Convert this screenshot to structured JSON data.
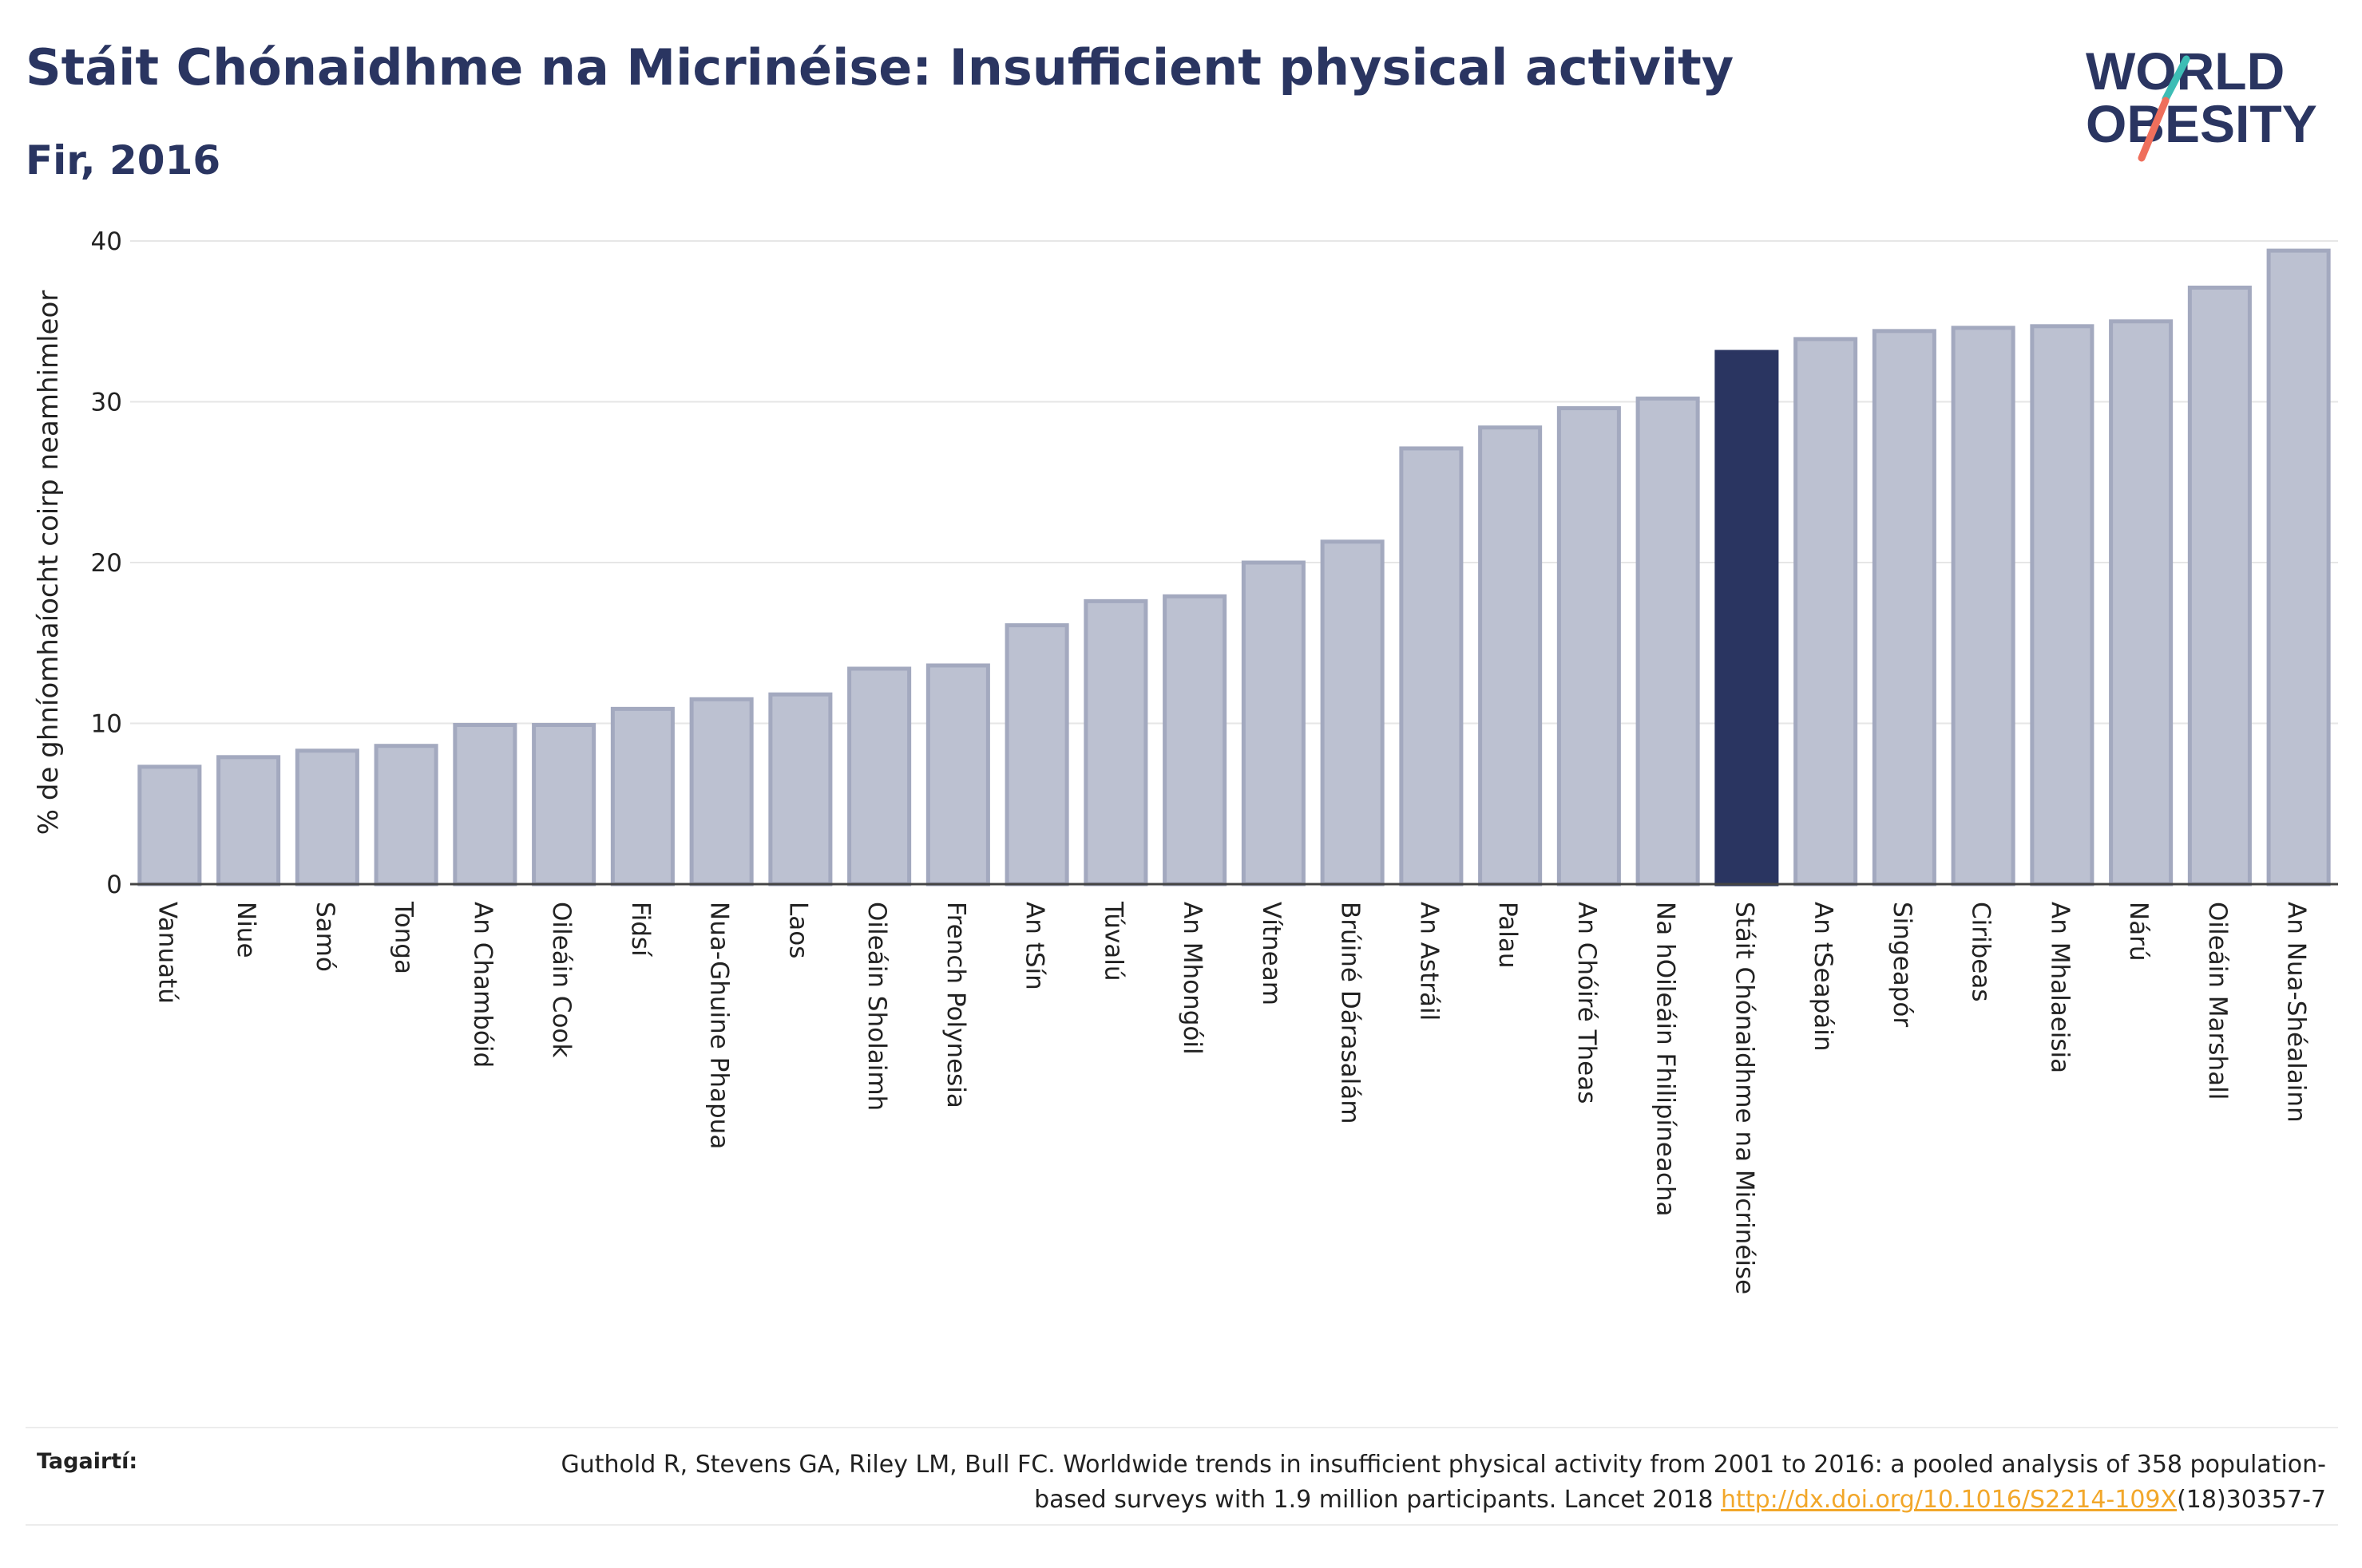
{
  "title": "Stáit Chónaidhme na Micrinéise: Insufficient physical activity",
  "subtitle": "Fir, 2016",
  "logo": {
    "line1": "WORLD",
    "line2": "OBESITY"
  },
  "colors": {
    "bar": "#bcc1d1",
    "bar_border": "#a3a9bf",
    "highlight": "#2a3561",
    "accent_teal": "#3dbdb5",
    "accent_coral": "#ef6f5c",
    "link": "#f2a72a"
  },
  "chart_data": {
    "type": "bar",
    "ylabel": "% de ghníomhaíocht coirp neamhimleor",
    "ylim": [
      0,
      40
    ],
    "yticks": [
      0,
      10,
      20,
      30,
      40
    ],
    "grid": true,
    "highlight": "Stáit Chónaidhme na Micrinéise",
    "categories": [
      "Vanuatú",
      "Niue",
      "Samó",
      "Tonga",
      "An Chambóid",
      "Oileáin Cook",
      "Fidsí",
      "Nua-Ghuine Phapua",
      "Laos",
      "Oileáin Sholaimh",
      "French Polynesia",
      "An tSín",
      "Túvalú",
      "An Mhongóil",
      "Vítneam",
      "Brúiné Dárasalám",
      "An Astráil",
      "Palau",
      "An Chóiré Theas",
      "Na hOileáin Fhilipíneacha",
      "Stáit Chónaidhme na Micrinéise",
      "An tSeapáin",
      "Singeapór",
      "Ciribeas",
      "An Mhalaeisia",
      "Nárú",
      "Oileáin Marshall",
      "An Nua-Shéalainn"
    ],
    "values": [
      7.3,
      7.9,
      8.3,
      8.6,
      9.9,
      9.9,
      10.9,
      11.5,
      11.8,
      13.4,
      13.6,
      16.1,
      17.6,
      17.9,
      20.0,
      21.3,
      27.1,
      28.4,
      29.6,
      30.2,
      33.1,
      33.9,
      34.4,
      34.6,
      34.7,
      35.0,
      37.1,
      39.4
    ]
  },
  "reference": {
    "label": "Tagairtí:",
    "text_before": "Guthold R, Stevens GA, Riley LM, Bull FC. Worldwide trends in insufficient physical activity from 2001 to 2016: a pooled analysis of 358 population-based surveys with 1.9 million participants. Lancet 2018 ",
    "link": "http://dx.doi.org/10.1016/S2214-109X",
    "text_after": "(18)30357-7"
  }
}
